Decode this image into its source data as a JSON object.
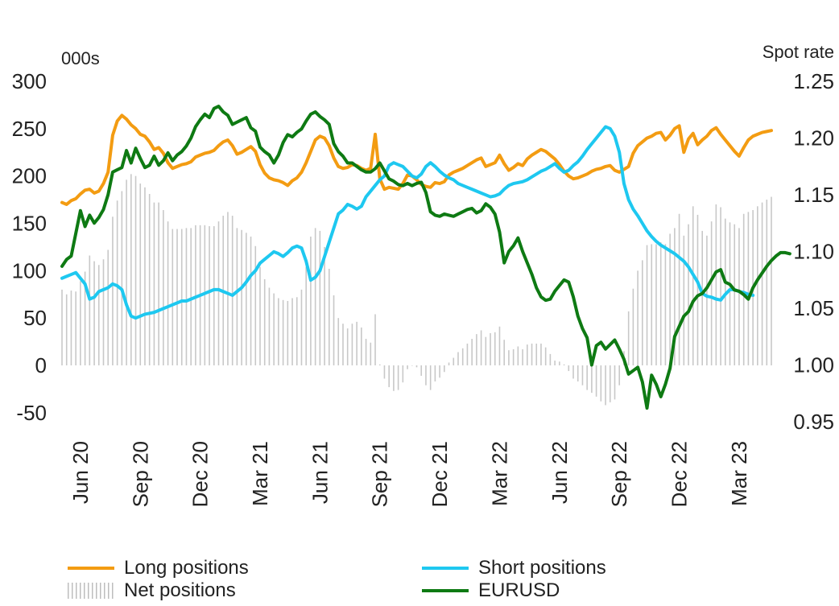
{
  "chart_data": {
    "type": "line",
    "left_axis_unit": "000s",
    "right_axis_unit": "Spot rate",
    "left_ticks": [
      "300",
      "250",
      "200",
      "150",
      "100",
      "50",
      "0",
      "-50"
    ],
    "left_range": [
      -50,
      300
    ],
    "right_ticks": [
      "1.25",
      "1.20",
      "1.15",
      "1.10",
      "1.05",
      "1.00",
      "0.95"
    ],
    "right_range": [
      0.95,
      1.25
    ],
    "x_labels": [
      "Jun 20",
      "Sep 20",
      "Dec 20",
      "Mar 21",
      "Jun 21",
      "Sep 21",
      "Dec 21",
      "Mar 22",
      "Jun 22",
      "Sep 22",
      "Dec 22",
      "Mar 23"
    ],
    "x_label_index": [
      4,
      17,
      30,
      43,
      56,
      69,
      82,
      95,
      108,
      121,
      134,
      147
    ],
    "series": [
      {
        "name": "Long positions",
        "axis": "left",
        "color": "#f39c12",
        "values": [
          172,
          170,
          174,
          176,
          181,
          185,
          186,
          182,
          184,
          192,
          204,
          243,
          258,
          264,
          260,
          254,
          250,
          244,
          242,
          236,
          228,
          230,
          224,
          214,
          208,
          210,
          212,
          213,
          215,
          220,
          222,
          224,
          225,
          227,
          232,
          236,
          238,
          232,
          223,
          225,
          228,
          231,
          226,
          212,
          203,
          198,
          196,
          195,
          193,
          190,
          195,
          198,
          204,
          214,
          226,
          238,
          242,
          240,
          232,
          219,
          210,
          208,
          209,
          212,
          211,
          208,
          206,
          208,
          244,
          197,
          186,
          188,
          187,
          186,
          192,
          201,
          200,
          196,
          191,
          189,
          188,
          193,
          192,
          194,
          201,
          204,
          206,
          208,
          211,
          214,
          217,
          219,
          210,
          212,
          214,
          222,
          213,
          206,
          209,
          213,
          211,
          218,
          222,
          225,
          228,
          226,
          222,
          218,
          212,
          205,
          200,
          197,
          198,
          200,
          202,
          205,
          207,
          208,
          210,
          211,
          206,
          204,
          207,
          210,
          224,
          232,
          236,
          240,
          242,
          245,
          246,
          238,
          243,
          250,
          253,
          225,
          239,
          245,
          233,
          238,
          242,
          248,
          251,
          244,
          238,
          232,
          226,
          221,
          230,
          238,
          242,
          244,
          246,
          247,
          248
        ]
      },
      {
        "name": "Short positions",
        "axis": "left",
        "color": "#1ec8f0",
        "values": [
          92,
          94,
          96,
          98,
          92,
          86,
          70,
          72,
          78,
          80,
          82,
          86,
          84,
          80,
          64,
          52,
          50,
          52,
          54,
          55,
          56,
          58,
          60,
          62,
          64,
          66,
          68,
          68,
          70,
          72,
          74,
          76,
          78,
          80,
          80,
          78,
          76,
          74,
          78,
          82,
          88,
          95,
          100,
          108,
          112,
          116,
          120,
          118,
          115,
          119,
          124,
          126,
          124,
          110,
          90,
          93,
          100,
          115,
          130,
          145,
          160,
          164,
          170,
          168,
          165,
          168,
          178,
          184,
          190,
          196,
          200,
          211,
          214,
          212,
          210,
          205,
          200,
          198,
          202,
          210,
          214,
          210,
          205,
          201,
          198,
          196,
          192,
          190,
          188,
          186,
          184,
          182,
          180,
          178,
          179,
          181,
          186,
          190,
          192,
          193,
          194,
          196,
          199,
          202,
          205,
          207,
          210,
          213,
          208,
          204,
          206,
          211,
          215,
          221,
          228,
          234,
          240,
          246,
          252,
          250,
          242,
          225,
          192,
          175,
          165,
          158,
          150,
          142,
          136,
          131,
          127,
          124,
          121,
          118,
          114,
          110,
          104,
          96,
          88,
          76,
          73,
          72,
          70,
          69,
          75,
          80,
          80,
          78,
          77,
          75,
          74
        ]
      },
      {
        "name": "Net positions",
        "axis": "left",
        "color": "#c8c8c8",
        "kind": "bars",
        "values": [
          80,
          75,
          79,
          78,
          89,
          99,
          116,
          110,
          106,
          112,
          122,
          157,
          174,
          184,
          196,
          202,
          200,
          192,
          188,
          181,
          172,
          172,
          164,
          152,
          144,
          144,
          144,
          145,
          145,
          148,
          148,
          148,
          147,
          147,
          152,
          158,
          162,
          158,
          145,
          143,
          140,
          136,
          126,
          104,
          91,
          82,
          76,
          71,
          69,
          68,
          71,
          72,
          80,
          104,
          136,
          145,
          142,
          125,
          102,
          74,
          50,
          44,
          39,
          44,
          46,
          40,
          28,
          24,
          54,
          1,
          -14,
          -23,
          -27,
          -26,
          -18,
          -4,
          0,
          -2,
          -11,
          -21,
          -26,
          -17,
          -13,
          -7,
          3,
          8,
          14,
          18,
          23,
          28,
          33,
          37,
          30,
          34,
          35,
          41,
          27,
          16,
          17,
          20,
          17,
          22,
          23,
          23,
          23,
          19,
          12,
          5,
          4,
          1,
          -6,
          -14,
          -17,
          -21,
          -26,
          -29,
          -33,
          -38,
          -42,
          -39,
          -36,
          -21,
          15,
          57,
          81,
          100,
          111,
          127,
          128,
          128,
          130,
          128,
          139,
          145,
          160,
          137,
          149,
          168,
          159,
          142,
          137,
          152,
          170,
          167,
          155,
          151,
          149,
          145,
          160,
          162,
          164,
          168,
          172,
          175,
          178
        ]
      },
      {
        "name": "EURUSD",
        "axis": "right",
        "color": "#0e7a13",
        "values": [
          1.087,
          1.093,
          1.096,
          1.116,
          1.136,
          1.122,
          1.132,
          1.125,
          1.13,
          1.137,
          1.15,
          1.17,
          1.172,
          1.174,
          1.189,
          1.178,
          1.191,
          1.182,
          1.174,
          1.176,
          1.184,
          1.176,
          1.18,
          1.187,
          1.18,
          1.185,
          1.188,
          1.193,
          1.2,
          1.21,
          1.216,
          1.221,
          1.218,
          1.226,
          1.228,
          1.223,
          1.22,
          1.212,
          1.214,
          1.216,
          1.218,
          1.209,
          1.206,
          1.192,
          1.188,
          1.185,
          1.178,
          1.185,
          1.196,
          1.203,
          1.201,
          1.205,
          1.208,
          1.215,
          1.221,
          1.223,
          1.219,
          1.216,
          1.212,
          1.195,
          1.188,
          1.184,
          1.178,
          1.178,
          1.175,
          1.172,
          1.17,
          1.17,
          1.173,
          1.178,
          1.171,
          1.164,
          1.162,
          1.159,
          1.158,
          1.16,
          1.158,
          1.16,
          1.161,
          1.152,
          1.135,
          1.132,
          1.131,
          1.133,
          1.132,
          1.131,
          1.133,
          1.135,
          1.137,
          1.138,
          1.134,
          1.136,
          1.142,
          1.139,
          1.133,
          1.117,
          1.09,
          1.1,
          1.105,
          1.112,
          1.1,
          1.09,
          1.08,
          1.068,
          1.06,
          1.057,
          1.058,
          1.065,
          1.07,
          1.075,
          1.073,
          1.06,
          1.043,
          1.032,
          1.024,
          1.0,
          1.017,
          1.02,
          1.014,
          1.018,
          1.022,
          1.014,
          1.005,
          0.992,
          0.995,
          0.998,
          0.985,
          0.962,
          0.991,
          0.983,
          0.972,
          0.983,
          0.997,
          1.025,
          1.034,
          1.043,
          1.047,
          1.056,
          1.061,
          1.063,
          1.068,
          1.075,
          1.082,
          1.084,
          1.073,
          1.071,
          1.066,
          1.065,
          1.062,
          1.058,
          1.068,
          1.075,
          1.081,
          1.087,
          1.092,
          1.096,
          1.099,
          1.099,
          1.098
        ]
      }
    ],
    "legend": [
      "Long positions",
      "Short positions",
      "Net positions",
      "EURUSD"
    ],
    "grid": false
  }
}
